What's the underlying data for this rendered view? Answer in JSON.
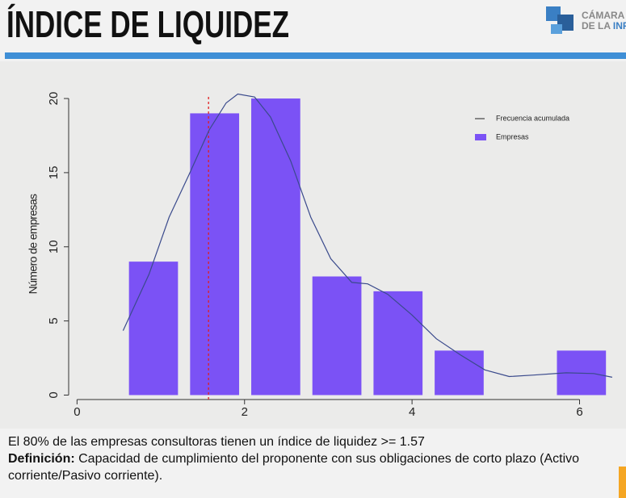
{
  "header": {
    "title": "ÍNDICE DE LIQUIDEZ",
    "logo_line1": "CÁMARA C",
    "logo_line2a": "DE LA",
    "logo_line2b": "INFRA"
  },
  "chart_data": {
    "type": "histogram",
    "ylabel": "Número de empresas",
    "name": "Empresas",
    "color": "#7b52f5",
    "bins": [
      0.62,
      1.35,
      2.08,
      2.81,
      3.54,
      4.27,
      5.0,
      5.73,
      6.46
    ],
    "values": [
      9,
      19,
      20,
      8,
      7,
      3,
      0,
      3
    ],
    "line": {
      "name": "Frecuencia acumulada",
      "color": "#3a4a8c",
      "x": [
        0.55,
        0.86,
        1.1,
        1.34,
        1.58,
        1.78,
        1.92,
        2.12,
        2.31,
        2.55,
        2.79,
        3.03,
        3.28,
        3.47,
        3.71,
        4.0,
        4.29,
        4.58,
        4.87,
        5.16,
        5.45,
        5.84,
        6.17,
        6.39
      ],
      "y": [
        4.35,
        8.15,
        12.0,
        14.9,
        17.9,
        19.7,
        20.3,
        20.1,
        18.75,
        15.8,
        12.0,
        9.2,
        7.6,
        7.5,
        6.8,
        5.4,
        3.8,
        2.7,
        1.7,
        1.25,
        1.35,
        1.5,
        1.45,
        1.2
      ]
    },
    "threshold": {
      "value": 1.57,
      "color": "#e02020"
    },
    "xlim": [
      -0.1,
      6.41
    ],
    "ylim": [
      -0.3,
      21.2
    ],
    "xticks": [
      0,
      2,
      4,
      6
    ],
    "yticks": [
      0,
      5,
      10,
      15,
      20
    ],
    "legend": "upper right"
  },
  "footer": {
    "note": "El 80% de las empresas consultoras tienen un índice de liquidez >= 1.57",
    "definition_label": "Definición:",
    "definition": "Capacidad de cumplimiento del proponente con sus obligaciones de corto plazo (Activo corriente/Pasivo corriente)."
  }
}
